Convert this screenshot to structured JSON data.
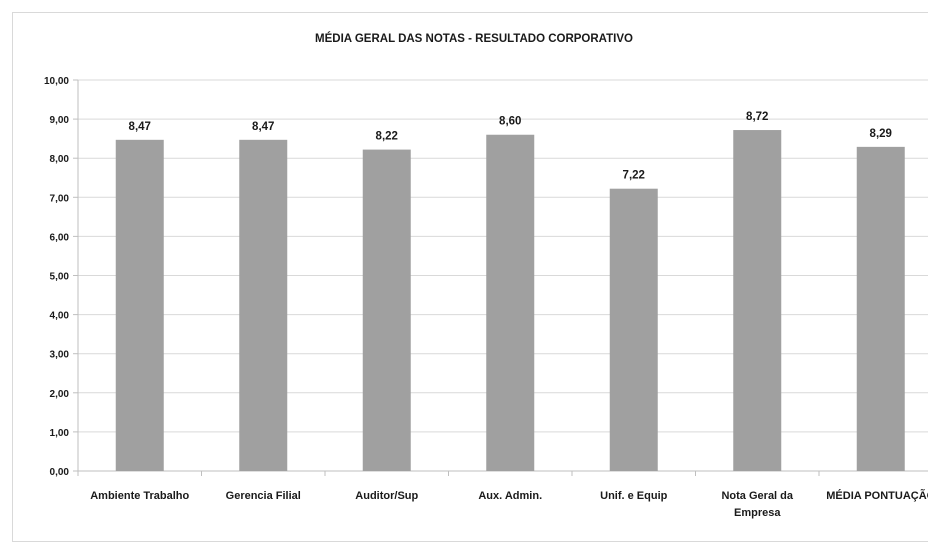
{
  "chart_data": {
    "type": "bar",
    "title": "MÉDIA GERAL DAS NOTAS - RESULTADO CORPORATIVO",
    "categories": [
      [
        "Ambiente Trabalho"
      ],
      [
        "Gerencia Filial"
      ],
      [
        "Auditor/Sup"
      ],
      [
        "Aux. Admin."
      ],
      [
        "Unif. e Equip"
      ],
      [
        "Nota Geral da",
        "Empresa"
      ],
      [
        "MÉDIA PONTUAÇÃO"
      ]
    ],
    "values": [
      8.47,
      8.47,
      8.22,
      8.6,
      7.22,
      8.72,
      8.29
    ],
    "value_labels": [
      "8,47",
      "8,47",
      "8,22",
      "8,60",
      "7,22",
      "8,72",
      "8,29"
    ],
    "y_ticks": [
      "0,00",
      "1,00",
      "2,00",
      "3,00",
      "4,00",
      "5,00",
      "6,00",
      "7,00",
      "8,00",
      "9,00",
      "10,00"
    ],
    "ylim": [
      0,
      10
    ],
    "grid": true,
    "legend": "none",
    "bar_color": "#a0a0a0",
    "grid_color": "#d9d9d9",
    "text_color": "#1a1a1a"
  }
}
